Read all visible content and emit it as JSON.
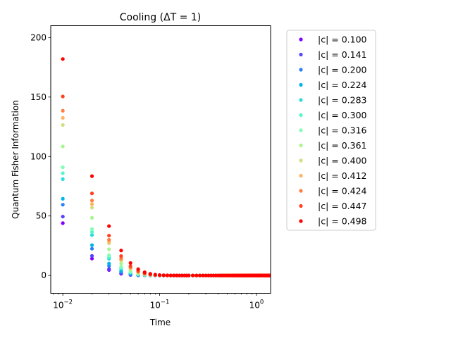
{
  "chart_data": {
    "type": "scatter",
    "title": "Cooling (ΔT = 1)",
    "xlabel": "Time",
    "ylabel": "Quantum Fisher Information",
    "xscale": "log",
    "xlim": [
      0.0075,
      1.4
    ],
    "ylim": [
      -15,
      210
    ],
    "yticks": [
      0,
      50,
      100,
      150,
      200
    ],
    "xticks": [
      {
        "value": 0.01,
        "base": "10",
        "exp": "−2"
      },
      {
        "value": 0.1,
        "base": "10",
        "exp": "−1"
      },
      {
        "value": 1,
        "base": "10",
        "exp": "0"
      }
    ],
    "grid": false,
    "legend_position": "outside-right",
    "x": [
      0.01,
      0.02,
      0.03,
      0.04,
      0.05,
      0.06,
      0.07,
      0.08,
      0.09,
      0.1,
      0.11,
      0.12,
      0.13,
      0.14,
      0.15,
      0.16,
      0.17,
      0.18,
      0.19,
      0.2,
      0.22,
      0.24,
      0.26,
      0.28,
      0.3,
      0.32,
      0.34,
      0.36,
      0.38,
      0.4,
      0.42,
      0.44,
      0.46,
      0.48,
      0.5,
      0.52,
      0.54,
      0.56,
      0.58,
      0.6,
      0.62,
      0.64,
      0.66,
      0.68,
      0.7,
      0.72,
      0.74,
      0.76,
      0.78,
      0.8,
      0.82,
      0.84,
      0.86,
      0.88,
      0.9,
      0.92,
      0.94,
      0.96,
      0.98,
      1.0,
      1.02,
      1.04,
      1.06,
      1.08,
      1.1,
      1.12,
      1.14,
      1.16,
      1.18,
      1.2,
      1.22,
      1.24,
      1.26,
      1.28,
      1.3,
      1.32,
      1.34,
      1.36,
      1.38,
      1.4
    ],
    "series": [
      {
        "name": "|c| = 0.100",
        "color": "#8000ff",
        "values": [
          44,
          14.2,
          4.6,
          1.4,
          0.45,
          0.14,
          0.05,
          0.02,
          0.01,
          0,
          0,
          0,
          0,
          0,
          0,
          0,
          0,
          0,
          0,
          0,
          0,
          0,
          0,
          0,
          0,
          0,
          0,
          0,
          0,
          0,
          0,
          0,
          0,
          0,
          0,
          0,
          0,
          0,
          0,
          0,
          0,
          0,
          0,
          0,
          0,
          0,
          0,
          0,
          0,
          0,
          0,
          0,
          0,
          0,
          0,
          0,
          0,
          0,
          0,
          0,
          0,
          0,
          0,
          0,
          0,
          0,
          0,
          0,
          0,
          0,
          0,
          0,
          0,
          0,
          0,
          0,
          0,
          0,
          0,
          0
        ]
      },
      {
        "name": "|c| = 0.141",
        "color": "#5641fd",
        "values": [
          49.5,
          16.5,
          5.5,
          1.8,
          0.6,
          0.2,
          0.07,
          0.02,
          0.01,
          0,
          0,
          0,
          0,
          0,
          0,
          0,
          0,
          0,
          0,
          0,
          0,
          0,
          0,
          0,
          0,
          0,
          0,
          0,
          0,
          0,
          0,
          0,
          0,
          0,
          0,
          0,
          0,
          0,
          0,
          0,
          0,
          0,
          0,
          0,
          0,
          0,
          0,
          0,
          0,
          0,
          0,
          0,
          0,
          0,
          0,
          0,
          0,
          0,
          0,
          0,
          0,
          0,
          0,
          0,
          0,
          0,
          0,
          0,
          0,
          0,
          0,
          0,
          0,
          0,
          0,
          0,
          0,
          0,
          0,
          0
        ]
      },
      {
        "name": "|c| = 0.200",
        "color": "#2c7ef7",
        "values": [
          59.5,
          22.5,
          8.2,
          3.0,
          1.1,
          0.4,
          0.15,
          0.05,
          0.02,
          0.01,
          0,
          0,
          0,
          0,
          0,
          0,
          0,
          0,
          0,
          0,
          0,
          0,
          0,
          0,
          0,
          0,
          0,
          0,
          0,
          0,
          0,
          0,
          0,
          0,
          0,
          0,
          0,
          0,
          0,
          0,
          0,
          0,
          0,
          0,
          0,
          0,
          0,
          0,
          0,
          0,
          0,
          0,
          0,
          0,
          0,
          0,
          0,
          0,
          0,
          0,
          0,
          0,
          0,
          0,
          0,
          0,
          0,
          0,
          0,
          0,
          0,
          0,
          0,
          0,
          0,
          0,
          0,
          0,
          0,
          0
        ]
      },
      {
        "name": "|c| = 0.224",
        "color": "#00b5eb",
        "values": [
          64.5,
          25.5,
          10,
          3.8,
          1.4,
          0.55,
          0.2,
          0.08,
          0.03,
          0.01,
          0,
          0,
          0,
          0,
          0,
          0,
          0,
          0,
          0,
          0,
          0,
          0,
          0,
          0,
          0,
          0,
          0,
          0,
          0,
          0,
          0,
          0,
          0,
          0,
          0,
          0,
          0,
          0,
          0,
          0,
          0,
          0,
          0,
          0,
          0,
          0,
          0,
          0,
          0,
          0,
          0,
          0,
          0,
          0,
          0,
          0,
          0,
          0,
          0,
          0,
          0,
          0,
          0,
          0,
          0,
          0,
          0,
          0,
          0,
          0,
          0,
          0,
          0,
          0,
          0,
          0,
          0,
          0,
          0,
          0
        ]
      },
      {
        "name": "|c| = 0.283",
        "color": "#2adddd",
        "values": [
          81,
          34,
          14,
          5.8,
          2.4,
          1.0,
          0.4,
          0.17,
          0.07,
          0.03,
          0.01,
          0,
          0,
          0,
          0,
          0,
          0,
          0,
          0,
          0,
          0,
          0,
          0,
          0,
          0,
          0,
          0,
          0,
          0,
          0,
          0,
          0,
          0,
          0,
          0,
          0,
          0,
          0,
          0,
          0,
          0,
          0,
          0,
          0,
          0,
          0,
          0,
          0,
          0,
          0,
          0,
          0,
          0,
          0,
          0,
          0,
          0,
          0,
          0,
          0,
          0,
          0,
          0,
          0,
          0,
          0,
          0,
          0,
          0,
          0,
          0,
          0,
          0,
          0,
          0,
          0,
          0,
          0,
          0,
          0
        ]
      },
      {
        "name": "|c| = 0.300",
        "color": "#54f6cb",
        "values": [
          86,
          36.5,
          15.5,
          6.5,
          2.8,
          1.2,
          0.5,
          0.2,
          0.09,
          0.04,
          0.02,
          0.01,
          0,
          0,
          0,
          0,
          0,
          0,
          0,
          0,
          0,
          0,
          0,
          0,
          0,
          0,
          0,
          0,
          0,
          0,
          0,
          0,
          0,
          0,
          0,
          0,
          0,
          0,
          0,
          0,
          0,
          0,
          0,
          0,
          0,
          0,
          0,
          0,
          0,
          0,
          0,
          0,
          0,
          0,
          0,
          0,
          0,
          0,
          0,
          0,
          0,
          0,
          0,
          0,
          0,
          0,
          0,
          0,
          0,
          0,
          0,
          0,
          0,
          0,
          0,
          0,
          0,
          0,
          0,
          0
        ]
      },
      {
        "name": "|c| = 0.316",
        "color": "#80ffb4",
        "values": [
          91,
          39,
          17,
          7.2,
          3.1,
          1.35,
          0.58,
          0.25,
          0.11,
          0.05,
          0.02,
          0.01,
          0,
          0,
          0,
          0,
          0,
          0,
          0,
          0,
          0,
          0,
          0,
          0,
          0,
          0,
          0,
          0,
          0,
          0,
          0,
          0,
          0,
          0,
          0,
          0,
          0,
          0,
          0,
          0,
          0,
          0,
          0,
          0,
          0,
          0,
          0,
          0,
          0,
          0,
          0,
          0,
          0,
          0,
          0,
          0,
          0,
          0,
          0,
          0,
          0,
          0,
          0,
          0,
          0,
          0,
          0,
          0,
          0,
          0,
          0,
          0,
          0,
          0,
          0,
          0,
          0,
          0,
          0,
          0
        ]
      },
      {
        "name": "|c| = 0.361",
        "color": "#aaf68e",
        "values": [
          108.5,
          48.5,
          22,
          10,
          4.5,
          2.0,
          0.9,
          0.4,
          0.18,
          0.08,
          0.04,
          0.02,
          0.01,
          0,
          0,
          0,
          0,
          0,
          0,
          0,
          0,
          0,
          0,
          0,
          0,
          0,
          0,
          0,
          0,
          0,
          0,
          0,
          0,
          0,
          0,
          0,
          0,
          0,
          0,
          0,
          0,
          0,
          0,
          0,
          0,
          0,
          0,
          0,
          0,
          0,
          0,
          0,
          0,
          0,
          0,
          0,
          0,
          0,
          0,
          0,
          0,
          0,
          0,
          0,
          0,
          0,
          0,
          0,
          0,
          0,
          0,
          0,
          0,
          0,
          0,
          0,
          0,
          0,
          0,
          0
        ]
      },
      {
        "name": "|c| = 0.400",
        "color": "#d4dd80",
        "values": [
          126.5,
          57,
          27,
          12.5,
          5.8,
          2.7,
          1.25,
          0.58,
          0.27,
          0.12,
          0.06,
          0.03,
          0.01,
          0,
          0,
          0,
          0,
          0,
          0,
          0,
          0,
          0,
          0,
          0,
          0,
          0,
          0,
          0,
          0,
          0,
          0,
          0,
          0,
          0,
          0,
          0,
          0,
          0,
          0,
          0,
          0,
          0,
          0,
          0,
          0,
          0,
          0,
          0,
          0,
          0,
          0,
          0,
          0,
          0,
          0,
          0,
          0,
          0,
          0,
          0,
          0,
          0,
          0,
          0,
          0,
          0,
          0,
          0,
          0,
          0,
          0,
          0,
          0,
          0,
          0,
          0,
          0,
          0,
          0,
          0
        ]
      },
      {
        "name": "|c| = 0.412",
        "color": "#ffb360",
        "values": [
          132.5,
          60,
          28.5,
          13.5,
          6.3,
          2.9,
          1.4,
          0.65,
          0.3,
          0.14,
          0.07,
          0.03,
          0.01,
          0,
          0,
          0,
          0,
          0,
          0,
          0,
          0,
          0,
          0,
          0,
          0,
          0,
          0,
          0,
          0,
          0,
          0,
          0,
          0,
          0,
          0,
          0,
          0,
          0,
          0,
          0,
          0,
          0,
          0,
          0,
          0,
          0,
          0,
          0,
          0,
          0,
          0,
          0,
          0,
          0,
          0,
          0,
          0,
          0,
          0,
          0,
          0,
          0,
          0,
          0,
          0,
          0,
          0,
          0,
          0,
          0,
          0,
          0,
          0,
          0,
          0,
          0,
          0,
          0,
          0,
          0
        ]
      },
      {
        "name": "|c| = 0.424",
        "color": "#ff7e41",
        "values": [
          138.5,
          63,
          30,
          14.3,
          6.8,
          3.2,
          1.5,
          0.72,
          0.34,
          0.16,
          0.08,
          0.04,
          0.02,
          0.01,
          0,
          0,
          0,
          0,
          0,
          0,
          0,
          0,
          0,
          0,
          0,
          0,
          0,
          0,
          0,
          0,
          0,
          0,
          0,
          0,
          0,
          0,
          0,
          0,
          0,
          0,
          0,
          0,
          0,
          0,
          0,
          0,
          0,
          0,
          0,
          0,
          0,
          0,
          0,
          0,
          0,
          0,
          0,
          0,
          0,
          0,
          0,
          0,
          0,
          0,
          0,
          0,
          0,
          0,
          0,
          0,
          0,
          0,
          0,
          0,
          0,
          0,
          0,
          0,
          0,
          0
        ]
      },
      {
        "name": "|c| = 0.447",
        "color": "#ff4121",
        "values": [
          150.5,
          69,
          33.5,
          16.3,
          7.9,
          3.8,
          1.85,
          0.9,
          0.43,
          0.21,
          0.1,
          0.05,
          0.02,
          0.01,
          0,
          0,
          0,
          0,
          0,
          0,
          0,
          0,
          0,
          0,
          0,
          0,
          0,
          0,
          0,
          0,
          0,
          0,
          0,
          0,
          0,
          0,
          0,
          0,
          0,
          0,
          0,
          0,
          0,
          0,
          0,
          0,
          0,
          0,
          0,
          0,
          0,
          0,
          0,
          0,
          0,
          0,
          0,
          0,
          0,
          0,
          0,
          0,
          0,
          0,
          0,
          0,
          0,
          0,
          0,
          0,
          0,
          0,
          0,
          0,
          0,
          0,
          0,
          0,
          0,
          0
        ]
      },
      {
        "name": "|c| = 0.498",
        "color": "#ff0000",
        "values": [
          182,
          83.5,
          41.5,
          21,
          10.5,
          5.3,
          2.7,
          1.35,
          0.68,
          0.34,
          0.17,
          0.09,
          0.04,
          0.02,
          0.01,
          0,
          0,
          0,
          0,
          0,
          0,
          0,
          0,
          0,
          0,
          0,
          0,
          0,
          0,
          0,
          0,
          0,
          0,
          0,
          0,
          0,
          0,
          0,
          0,
          0,
          0,
          0,
          0,
          0,
          0,
          0,
          0,
          0,
          0,
          0,
          0,
          0,
          0,
          0,
          0,
          0,
          0,
          0,
          0,
          0,
          0,
          0,
          0,
          0,
          0,
          0,
          0,
          0,
          0,
          0,
          0,
          0,
          0,
          0,
          0,
          0,
          0,
          0,
          0,
          0
        ]
      }
    ]
  }
}
